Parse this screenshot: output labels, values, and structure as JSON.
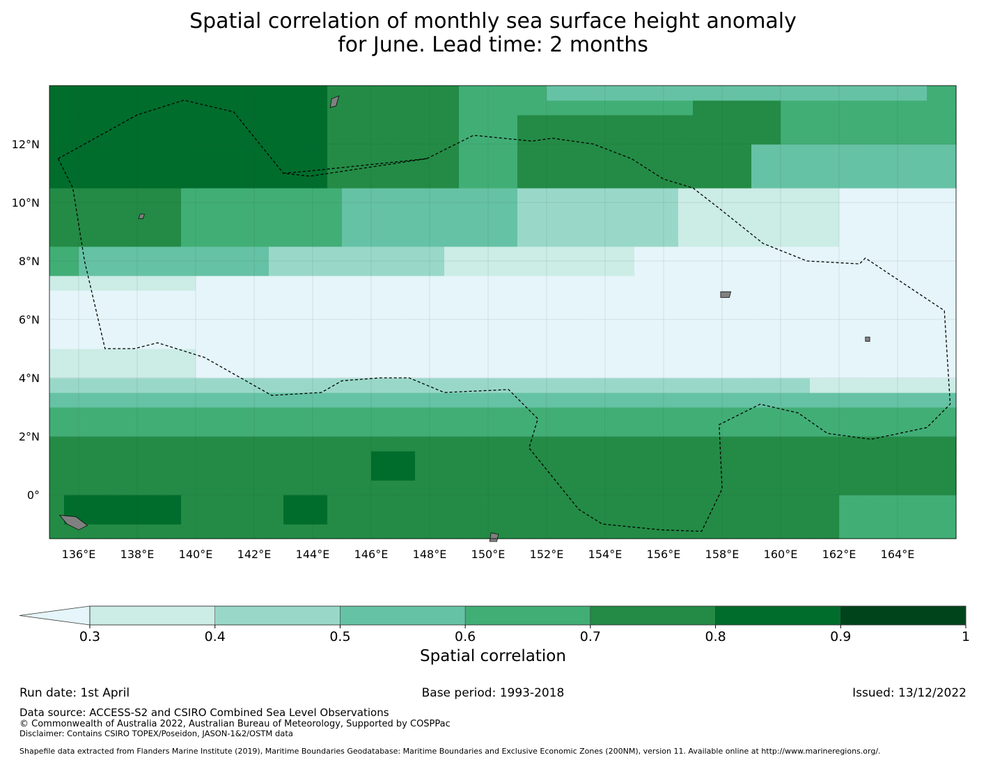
{
  "title": {
    "line1": "Spatial correlation of monthly sea surface height anomaly",
    "line2": "for June. Lead time: 2 months"
  },
  "map": {
    "lon_range": [
      135,
      166
    ],
    "lat_range": [
      -1.5,
      14
    ],
    "lon_ticks": [
      "136°E",
      "138°E",
      "140°E",
      "142°E",
      "144°E",
      "146°E",
      "148°E",
      "150°E",
      "152°E",
      "154°E",
      "156°E",
      "158°E",
      "160°E",
      "162°E",
      "164°E"
    ],
    "lat_ticks": [
      "0°",
      "2°N",
      "4°N",
      "6°N",
      "8°N",
      "10°N",
      "12°N"
    ],
    "grid": true,
    "land_color": "#808080",
    "eez_boundary_style": "dashed black"
  },
  "colorbar": {
    "label": "Spatial correlation",
    "ticks": [
      "0.3",
      "0.4",
      "0.5",
      "0.6",
      "0.7",
      "0.8",
      "0.9",
      "1"
    ],
    "under_color": "#e5f5f9",
    "colors": [
      "#ccece6",
      "#99d8c9",
      "#66c2a4",
      "#41ae76",
      "#238b45",
      "#006d2c",
      "#00441b"
    ]
  },
  "chart_data": {
    "type": "heatmap",
    "title": "Spatial correlation of monthly sea surface height anomaly for June. Lead time: 2 months",
    "colorbar_label": "Spatial correlation",
    "bins": [
      0.3,
      0.4,
      0.5,
      0.6,
      0.7,
      0.8,
      0.9,
      1.0
    ],
    "xlim": [
      135,
      166
    ],
    "ylim": [
      -1.5,
      14
    ],
    "approx_zonal_structure": [
      {
        "lat_from": 10.0,
        "lat_to": 14.0,
        "value_west": 0.85,
        "value_east": 0.65
      },
      {
        "lat_from": 8.0,
        "lat_to": 10.0,
        "value_west": 0.7,
        "value_east": 0.25
      },
      {
        "lat_from": 4.0,
        "lat_to": 8.0,
        "value_west": 0.25,
        "value_east": 0.25
      },
      {
        "lat_from": 2.0,
        "lat_to": 4.0,
        "value_west": 0.55,
        "value_east": 0.55
      },
      {
        "lat_from": -1.5,
        "lat_to": 2.0,
        "value_west": 0.75,
        "value_east": 0.75
      }
    ]
  },
  "footer": {
    "run_date": "Run date: 1st April",
    "base_period": "Base period: 1993-2018",
    "issued": "Issued: 13/12/2022",
    "data_source": "Data source: ACCESS-S2 and CSIRO Combined Sea Level Observations",
    "copyright": "© Commonwealth of Australia 2022, Australian Bureau of Meteorology, Supported by COSPPac",
    "disclaimer": "Disclaimer: Contains CSIRO TOPEX/Poseidon, JASON-1&2/OSTM data",
    "shapefile": "Shapefile data extracted from Flanders Marine Institute (2019), Maritime Boundaries Geodatabase: Maritime Boundaries and Exclusive Economic Zones (200NM), version 11. Available online at http://www.marineregions.org/."
  }
}
